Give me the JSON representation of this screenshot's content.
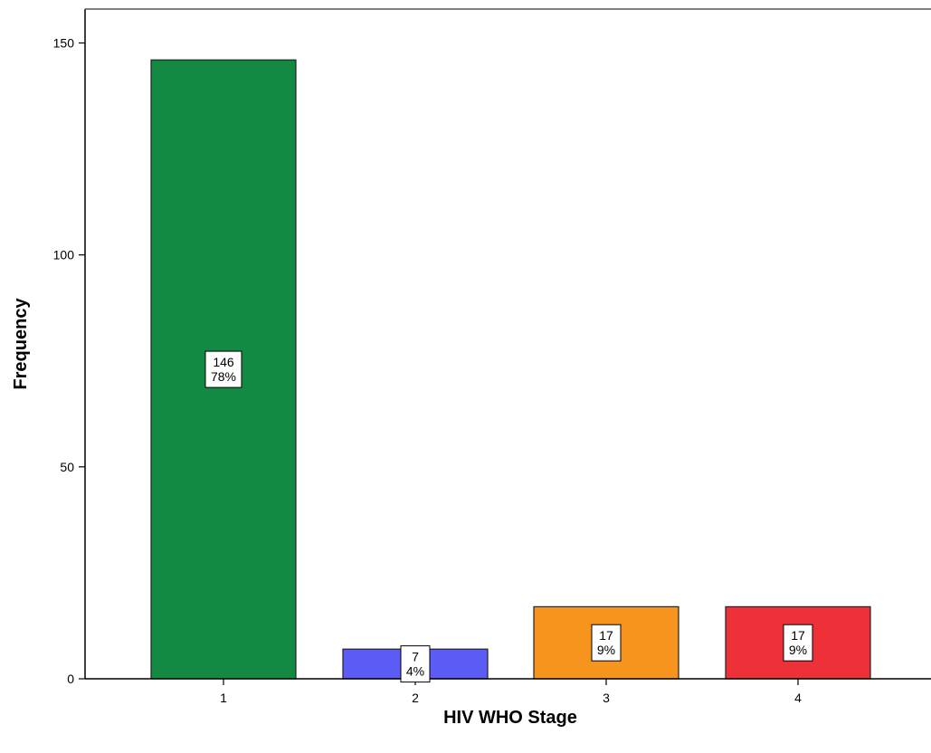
{
  "chart_data": {
    "type": "bar",
    "title": "",
    "xlabel": "HIV WHO Stage",
    "ylabel": "Frequency",
    "categories": [
      "1",
      "2",
      "3",
      "4"
    ],
    "values": [
      146,
      7,
      17,
      17
    ],
    "data_labels": [
      {
        "count": "146",
        "percent": "78%"
      },
      {
        "count": "7",
        "percent": "4%"
      },
      {
        "count": "17",
        "percent": "9%"
      },
      {
        "count": "17",
        "percent": "9%"
      }
    ],
    "colors": [
      "#128a43",
      "#5b5cf6",
      "#f7941d",
      "#ee3138"
    ],
    "ylim": [
      0,
      158
    ],
    "yticks": [
      0,
      50,
      100,
      150
    ],
    "ytick_labels": [
      "0",
      "50",
      "100",
      "150"
    ],
    "grid": false,
    "legend": false
  }
}
